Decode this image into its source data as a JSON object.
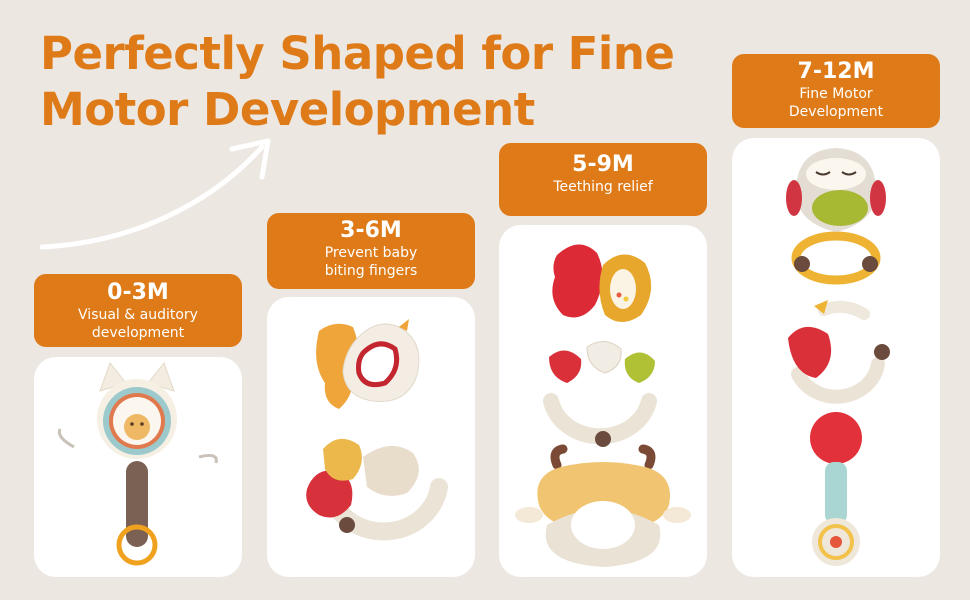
{
  "headline": {
    "line1": "Perfectly Shaped for Fine",
    "line2": "Motor Development"
  },
  "stages": [
    {
      "age": "0-3M",
      "desc_line1": "Visual & auditory",
      "desc_line2": "development"
    },
    {
      "age": "3-6M",
      "desc_line1": "Prevent baby",
      "desc_line2": "biting fingers"
    },
    {
      "age": "5-9M",
      "desc_line1": "Teething relief",
      "desc_line2": ""
    },
    {
      "age": "7-12M",
      "desc_line1": "Fine Motor",
      "desc_line2": "Development"
    }
  ],
  "colors": {
    "accent": "#de7a17",
    "background": "#ece7e1",
    "card": "#ffffff"
  },
  "icons": [
    "arrow-icon",
    "cat-rattle-icon",
    "bird-teether-icon",
    "leaf-rattle-icon",
    "squirrel-teether-icon",
    "mushroom-ring-teether-icon",
    "deer-teether-icon",
    "owl-teether-icon",
    "bird-ring-rattle-icon",
    "ball-rattle-icon"
  ]
}
